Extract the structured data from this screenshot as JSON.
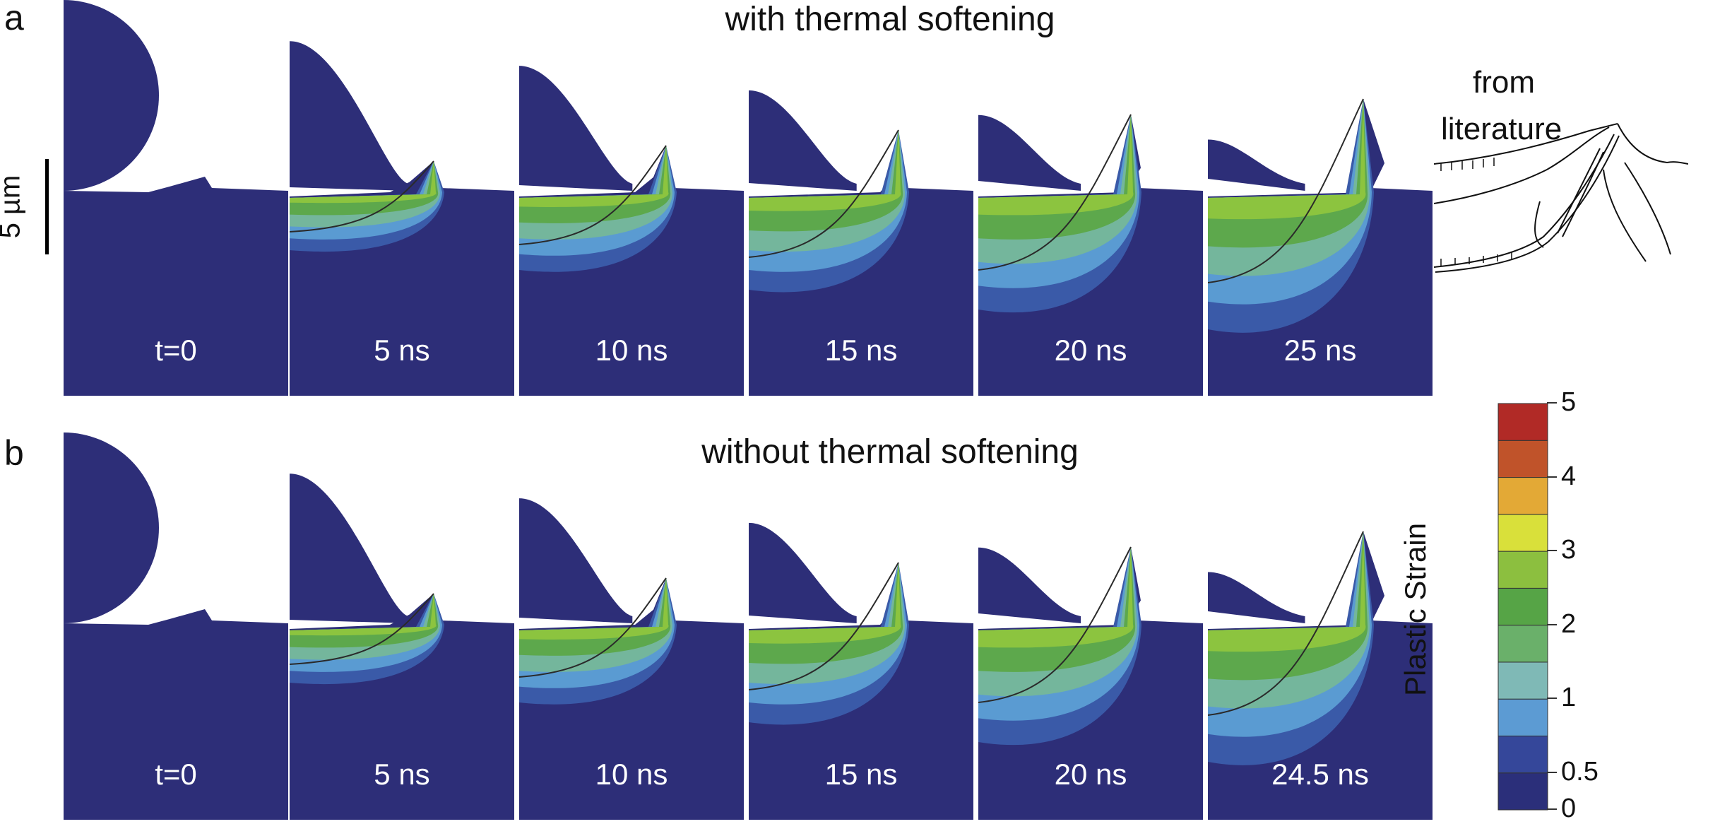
{
  "rows": [
    {
      "letter": "a",
      "title": "with thermal softening",
      "times": [
        "t=0",
        "5 ns",
        "10 ns",
        "15 ns",
        "20 ns",
        "25 ns"
      ]
    },
    {
      "letter": "b",
      "title": "without thermal softening",
      "times": [
        "t=0",
        "5 ns",
        "10 ns",
        "15 ns",
        "20 ns",
        "24.5 ns"
      ]
    }
  ],
  "scale_bar": {
    "label": "5 µm"
  },
  "literature": {
    "line1": "from",
    "line2": "literature"
  },
  "colorbar": {
    "title": "Plastic Strain",
    "tick_labels": [
      "5",
      "4",
      "3",
      "2",
      "1",
      "0.5",
      "0"
    ],
    "colors": [
      "#2b2f7a",
      "#35479a",
      "#5c9bd3",
      "#7fb9b6",
      "#6ab06a",
      "#56a446",
      "#8cbf3f",
      "#d9e03a",
      "#e3a936",
      "#c0532a",
      "#b12a26"
    ]
  },
  "colors": {
    "material": "#2d2e78",
    "band1": "#3a5aa8",
    "band2": "#5a9bd2",
    "band3": "#74b69c",
    "band4": "#5da84c",
    "band5": "#8cc43f"
  }
}
